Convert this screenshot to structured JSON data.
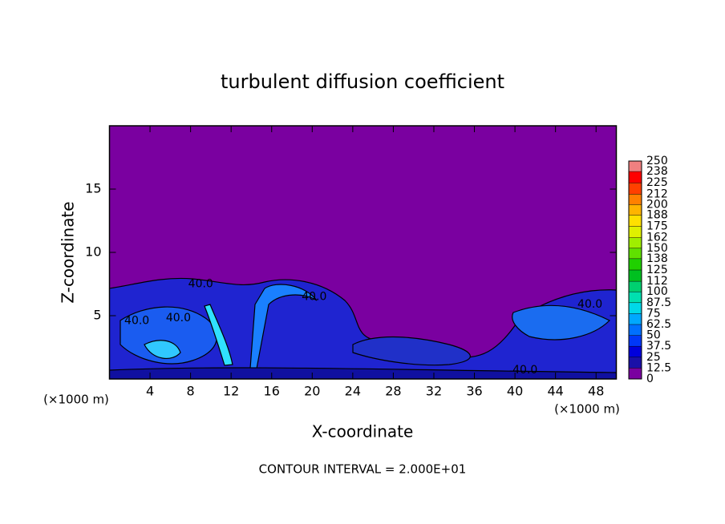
{
  "chart_data": {
    "type": "contour",
    "title": "turbulent diffusion coefficient",
    "xlabel": "X-coordinate",
    "ylabel": "Z-coordinate",
    "x_unit": "(×1000 m)",
    "annotation": "CONTOUR INTERVAL = 2.000E+01",
    "xlim": [
      0,
      50
    ],
    "ylim": [
      0,
      20
    ],
    "xticks": [
      4,
      8,
      12,
      16,
      20,
      24,
      28,
      32,
      36,
      40,
      44,
      48
    ],
    "yticks": [
      5,
      10,
      15
    ],
    "background_color": "#7a00a0",
    "contour_labels": [
      {
        "x": 9.0,
        "y": 7.5,
        "label": "40.0"
      },
      {
        "x": 20.2,
        "y": 6.5,
        "label": "40.0"
      },
      {
        "x": 47.4,
        "y": 5.9,
        "label": "40.0"
      },
      {
        "x": 2.7,
        "y": 4.6,
        "label": "40.0"
      },
      {
        "x": 6.8,
        "y": 4.8,
        "label": "40.0"
      },
      {
        "x": 41.0,
        "y": 0.7,
        "label": "40.0"
      }
    ],
    "colorbar": {
      "levels": [
        0,
        12.5,
        25,
        37.5,
        50,
        62.5,
        75,
        87.5,
        100,
        112,
        125,
        138,
        150,
        162,
        175,
        188,
        200,
        212,
        225,
        238,
        250
      ],
      "colors": [
        "#7a00a0",
        "#1a10a8",
        "#0000dc",
        "#0038f8",
        "#0070ff",
        "#00a8ff",
        "#00d8e8",
        "#00e0b0",
        "#00d070",
        "#00c020",
        "#20d000",
        "#60e000",
        "#a0ee00",
        "#dff000",
        "#ffe000",
        "#ffb400",
        "#ff8000",
        "#ff4000",
        "#ff0000",
        "#f08080"
      ]
    }
  }
}
